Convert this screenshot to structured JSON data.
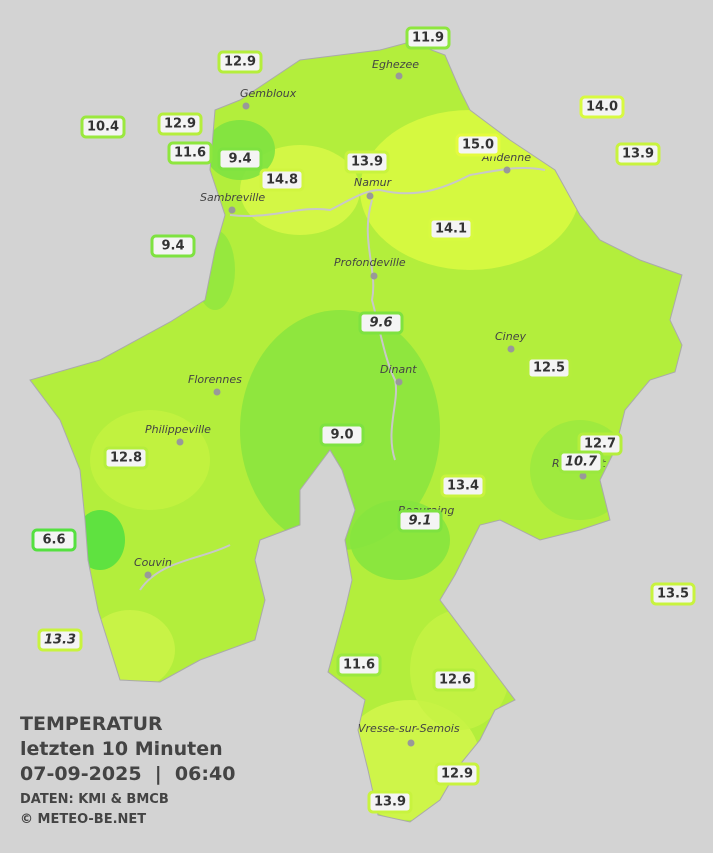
{
  "legend": {
    "title": "TEMPERATUR",
    "subtitle": "letzten 10 Minuten",
    "timestamp": "07-09-2025  |  06:40",
    "source": "DATEN: KMI & BMCB",
    "copyright": "© METEO-BE.NET"
  },
  "towns": [
    "Eghezee",
    "Gembloux",
    "Andenne",
    "Namur",
    "Sambreville",
    "Profondeville",
    "Ciney",
    "Dinant",
    "Florennes",
    "Philippeville",
    "Rochefort",
    "Beauraing",
    "Couvin",
    "Vresse-sur-Semois"
  ],
  "stations": [
    "11.9",
    "12.9",
    "14.0",
    "10.4",
    "12.9",
    "15.0",
    "13.9",
    "11.6",
    "9.4",
    "13.9",
    "14.8",
    "14.1",
    "9.4",
    "9.6",
    "12.5",
    "9.0",
    "12.7",
    "10.7",
    "12.8",
    "13.4",
    "9.1",
    "6.6",
    "13.5",
    "13.3",
    "11.6",
    "12.6",
    "12.9",
    "13.9"
  ]
}
